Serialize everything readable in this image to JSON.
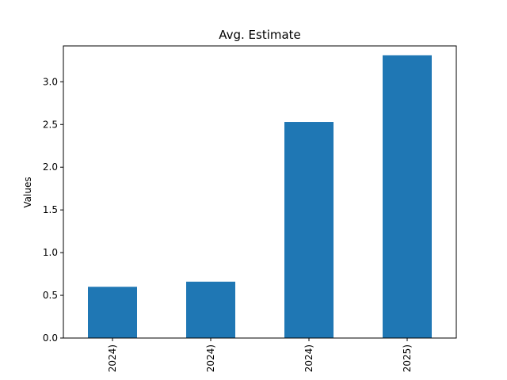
{
  "chart_data": {
    "type": "bar",
    "title": "Avg. Estimate",
    "xlabel": "",
    "ylabel": "Values",
    "categories": [
      "2024)",
      "2024)",
      "2024)",
      "2025)"
    ],
    "values": [
      0.6,
      0.66,
      2.53,
      3.31
    ],
    "ylim": [
      0,
      3.42
    ],
    "yticks": [
      0.0,
      0.5,
      1.0,
      1.5,
      2.0,
      2.5,
      3.0
    ],
    "ytick_labels": [
      "0.0",
      "0.5",
      "1.0",
      "1.5",
      "2.0",
      "2.5",
      "3.0"
    ],
    "grid": false,
    "legend": "none",
    "colors": {
      "bar": "#1f77b4",
      "axis": "#000000",
      "background": "#ffffff"
    }
  }
}
